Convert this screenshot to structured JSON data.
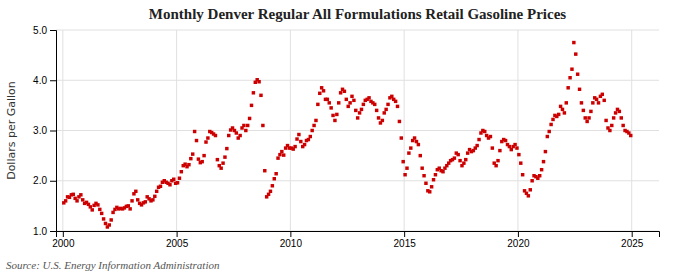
{
  "chart_data": {
    "type": "scatter",
    "title": "Monthly Denver Regular All Formulations Retail Gasoline Prices",
    "ylabel": "Dollars per Gallon",
    "source": "Source: U.S. Energy Information Administration",
    "color": "#cc0000",
    "marker": "square",
    "grid": true,
    "xlim": [
      1999.7,
      2026.2
    ],
    "ylim": [
      1.0,
      5.0
    ],
    "xticks": [
      2000,
      2005,
      2010,
      2015,
      2020,
      2025
    ],
    "yticks": [
      {
        "value": 1.0,
        "label": "1.0"
      },
      {
        "value": 2.0,
        "label": "2.0"
      },
      {
        "value": 3.0,
        "label": "3.0"
      },
      {
        "value": 4.0,
        "label": "4.0"
      },
      {
        "value": 5.0,
        "label": "5.0"
      }
    ],
    "x": [
      2000.042,
      2000.125,
      2000.208,
      2000.292,
      2000.375,
      2000.458,
      2000.542,
      2000.625,
      2000.708,
      2000.792,
      2000.875,
      2000.958,
      2001.042,
      2001.125,
      2001.208,
      2001.292,
      2001.375,
      2001.458,
      2001.542,
      2001.625,
      2001.708,
      2001.792,
      2001.875,
      2001.958,
      2002.042,
      2002.125,
      2002.208,
      2002.292,
      2002.375,
      2002.458,
      2002.542,
      2002.625,
      2002.708,
      2002.792,
      2002.875,
      2002.958,
      2003.042,
      2003.125,
      2003.208,
      2003.292,
      2003.375,
      2003.458,
      2003.542,
      2003.625,
      2003.708,
      2003.792,
      2003.875,
      2003.958,
      2004.042,
      2004.125,
      2004.208,
      2004.292,
      2004.375,
      2004.458,
      2004.542,
      2004.625,
      2004.708,
      2004.792,
      2004.875,
      2004.958,
      2005.042,
      2005.125,
      2005.208,
      2005.292,
      2005.375,
      2005.458,
      2005.542,
      2005.625,
      2005.708,
      2005.792,
      2005.875,
      2005.958,
      2006.042,
      2006.125,
      2006.208,
      2006.292,
      2006.375,
      2006.458,
      2006.542,
      2006.625,
      2006.708,
      2006.792,
      2006.875,
      2006.958,
      2007.042,
      2007.125,
      2007.208,
      2007.292,
      2007.375,
      2007.458,
      2007.542,
      2007.625,
      2007.708,
      2007.792,
      2007.875,
      2007.958,
      2008.042,
      2008.125,
      2008.208,
      2008.292,
      2008.375,
      2008.458,
      2008.542,
      2008.625,
      2008.708,
      2008.792,
      2008.875,
      2008.958,
      2009.042,
      2009.125,
      2009.208,
      2009.292,
      2009.375,
      2009.458,
      2009.542,
      2009.625,
      2009.708,
      2009.792,
      2009.875,
      2009.958,
      2010.042,
      2010.125,
      2010.208,
      2010.292,
      2010.375,
      2010.458,
      2010.542,
      2010.625,
      2010.708,
      2010.792,
      2010.875,
      2010.958,
      2011.042,
      2011.125,
      2011.208,
      2011.292,
      2011.375,
      2011.458,
      2011.542,
      2011.625,
      2011.708,
      2011.792,
      2011.875,
      2011.958,
      2012.042,
      2012.125,
      2012.208,
      2012.292,
      2012.375,
      2012.458,
      2012.542,
      2012.625,
      2012.708,
      2012.792,
      2012.875,
      2012.958,
      2013.042,
      2013.125,
      2013.208,
      2013.292,
      2013.375,
      2013.458,
      2013.542,
      2013.625,
      2013.708,
      2013.792,
      2013.875,
      2013.958,
      2014.042,
      2014.125,
      2014.208,
      2014.292,
      2014.375,
      2014.458,
      2014.542,
      2014.625,
      2014.708,
      2014.792,
      2014.875,
      2014.958,
      2015.042,
      2015.125,
      2015.208,
      2015.292,
      2015.375,
      2015.458,
      2015.542,
      2015.625,
      2015.708,
      2015.792,
      2015.875,
      2015.958,
      2016.042,
      2016.125,
      2016.208,
      2016.292,
      2016.375,
      2016.458,
      2016.542,
      2016.625,
      2016.708,
      2016.792,
      2016.875,
      2016.958,
      2017.042,
      2017.125,
      2017.208,
      2017.292,
      2017.375,
      2017.458,
      2017.542,
      2017.625,
      2017.708,
      2017.792,
      2017.875,
      2017.958,
      2018.042,
      2018.125,
      2018.208,
      2018.292,
      2018.375,
      2018.458,
      2018.542,
      2018.625,
      2018.708,
      2018.792,
      2018.875,
      2018.958,
      2019.042,
      2019.125,
      2019.208,
      2019.292,
      2019.375,
      2019.458,
      2019.542,
      2019.625,
      2019.708,
      2019.792,
      2019.875,
      2019.958,
      2020.042,
      2020.125,
      2020.208,
      2020.292,
      2020.375,
      2020.458,
      2020.542,
      2020.625,
      2020.708,
      2020.792,
      2020.875,
      2020.958,
      2021.042,
      2021.125,
      2021.208,
      2021.292,
      2021.375,
      2021.458,
      2021.542,
      2021.625,
      2021.708,
      2021.792,
      2021.875,
      2021.958,
      2022.042,
      2022.125,
      2022.208,
      2022.292,
      2022.375,
      2022.458,
      2022.542,
      2022.625,
      2022.708,
      2022.792,
      2022.875,
      2022.958,
      2023.042,
      2023.125,
      2023.208,
      2023.292,
      2023.375,
      2023.458,
      2023.542,
      2023.625,
      2023.708,
      2023.792,
      2023.875,
      2023.958,
      2024.042,
      2024.125,
      2024.208,
      2024.292,
      2024.375,
      2024.458,
      2024.542,
      2024.625,
      2024.708,
      2024.792,
      2024.875,
      2024.958
    ],
    "values": [
      1.56,
      1.6,
      1.68,
      1.67,
      1.72,
      1.73,
      1.65,
      1.6,
      1.68,
      1.72,
      1.62,
      1.55,
      1.57,
      1.53,
      1.48,
      1.42,
      1.51,
      1.55,
      1.52,
      1.43,
      1.35,
      1.24,
      1.15,
      1.08,
      1.12,
      1.22,
      1.37,
      1.43,
      1.47,
      1.44,
      1.45,
      1.44,
      1.46,
      1.49,
      1.5,
      1.44,
      1.6,
      1.74,
      1.79,
      1.62,
      1.55,
      1.52,
      1.56,
      1.58,
      1.68,
      1.64,
      1.6,
      1.62,
      1.69,
      1.79,
      1.87,
      1.89,
      1.97,
      2.0,
      1.97,
      1.95,
      1.92,
      2.0,
      2.03,
      1.95,
      1.96,
      2.05,
      2.18,
      2.3,
      2.33,
      2.28,
      2.32,
      2.44,
      2.53,
      2.98,
      2.8,
      2.43,
      2.36,
      2.38,
      2.5,
      2.77,
      2.85,
      2.98,
      2.96,
      2.93,
      2.9,
      2.42,
      2.3,
      2.25,
      2.35,
      2.47,
      2.64,
      2.9,
      3.01,
      3.05,
      3.0,
      2.95,
      2.85,
      2.9,
      3.05,
      3.1,
      3.0,
      3.1,
      3.24,
      3.5,
      3.75,
      3.96,
      4.01,
      3.97,
      3.7,
      3.1,
      2.2,
      1.68,
      1.73,
      1.79,
      1.9,
      2.04,
      2.14,
      2.45,
      2.52,
      2.58,
      2.51,
      2.65,
      2.7,
      2.65,
      2.65,
      2.63,
      2.68,
      2.83,
      2.92,
      2.78,
      2.68,
      2.72,
      2.8,
      2.82,
      2.88,
      3.0,
      3.1,
      3.2,
      3.52,
      3.74,
      3.85,
      3.79,
      3.62,
      3.62,
      3.55,
      3.45,
      3.3,
      3.2,
      3.32,
      3.55,
      3.75,
      3.82,
      3.78,
      3.62,
      3.48,
      3.55,
      3.68,
      3.6,
      3.4,
      3.25,
      3.35,
      3.42,
      3.52,
      3.6,
      3.62,
      3.65,
      3.58,
      3.55,
      3.52,
      3.4,
      3.25,
      3.15,
      3.2,
      3.35,
      3.42,
      3.52,
      3.65,
      3.68,
      3.62,
      3.58,
      3.48,
      3.18,
      2.85,
      2.38,
      2.12,
      2.25,
      2.55,
      2.65,
      2.8,
      2.85,
      2.78,
      2.72,
      2.5,
      2.25,
      2.1,
      1.95,
      1.8,
      1.78,
      1.88,
      2.02,
      2.12,
      2.22,
      2.25,
      2.2,
      2.18,
      2.25,
      2.3,
      2.35,
      2.4,
      2.42,
      2.45,
      2.55,
      2.52,
      2.4,
      2.3,
      2.35,
      2.42,
      2.55,
      2.62,
      2.58,
      2.6,
      2.65,
      2.7,
      2.82,
      2.95,
      3.0,
      2.98,
      2.9,
      2.85,
      2.88,
      2.65,
      2.35,
      2.3,
      2.4,
      2.6,
      2.78,
      2.82,
      2.8,
      2.72,
      2.68,
      2.62,
      2.68,
      2.72,
      2.65,
      2.52,
      2.35,
      2.12,
      1.8,
      1.75,
      1.7,
      1.82,
      2.0,
      2.1,
      2.08,
      2.05,
      2.1,
      2.22,
      2.38,
      2.58,
      2.88,
      2.98,
      3.12,
      3.22,
      3.3,
      3.28,
      3.32,
      3.48,
      3.42,
      3.35,
      3.55,
      3.85,
      4.05,
      4.22,
      4.75,
      4.52,
      4.12,
      3.82,
      3.55,
      3.4,
      3.25,
      3.18,
      3.25,
      3.38,
      3.55,
      3.65,
      3.62,
      3.55,
      3.68,
      3.72,
      3.6,
      3.2,
      3.05,
      3.0,
      3.1,
      3.25,
      3.35,
      3.42,
      3.38,
      3.25,
      3.1,
      3.0,
      2.98,
      2.95,
      2.9
    ]
  }
}
